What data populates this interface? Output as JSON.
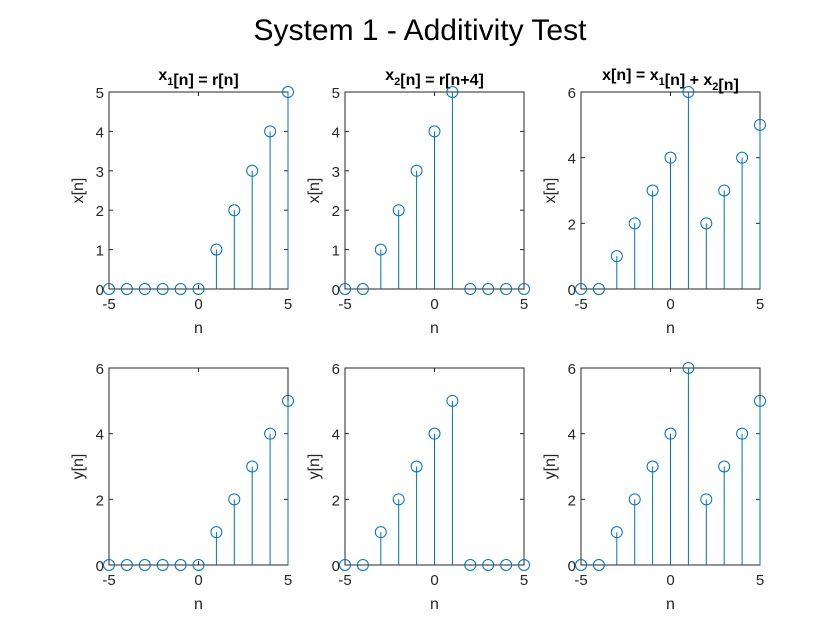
{
  "figure": {
    "suptitle": "System 1 - Additivity Test",
    "colors": {
      "stem": "#0072BD",
      "axis": "#262626",
      "background": "#ffffff"
    }
  },
  "chart_data": [
    {
      "type": "stem",
      "title_parts": [
        {
          "text": "x",
          "sub": false
        },
        {
          "text": "1",
          "sub": true
        },
        {
          "text": "[n] = r[n]",
          "sub": false
        }
      ],
      "xlabel": "n",
      "ylabel": "x[n]",
      "xlim": [
        -5,
        5
      ],
      "ylim": [
        0,
        5
      ],
      "xticks": [
        -5,
        0,
        5
      ],
      "yticks": [
        0,
        1,
        2,
        3,
        4,
        5
      ],
      "x": [
        -5,
        -4,
        -3,
        -2,
        -1,
        0,
        1,
        2,
        3,
        4,
        5
      ],
      "values": [
        0,
        0,
        0,
        0,
        0,
        0,
        1,
        2,
        3,
        4,
        5
      ],
      "grid": false
    },
    {
      "type": "stem",
      "title_parts": [
        {
          "text": "x",
          "sub": false
        },
        {
          "text": "2",
          "sub": true
        },
        {
          "text": "[n] = r[n+4]",
          "sub": false
        }
      ],
      "xlabel": "n",
      "ylabel": "x[n]",
      "xlim": [
        -5,
        5
      ],
      "ylim": [
        0,
        5
      ],
      "xticks": [
        -5,
        0,
        5
      ],
      "yticks": [
        0,
        1,
        2,
        3,
        4,
        5
      ],
      "x": [
        -5,
        -4,
        -3,
        -2,
        -1,
        0,
        1,
        2,
        3,
        4,
        5
      ],
      "values": [
        0,
        0,
        1,
        2,
        3,
        4,
        5,
        0,
        0,
        0,
        0
      ],
      "grid": false
    },
    {
      "type": "stem",
      "title_parts": [
        {
          "text": "x[n] = x",
          "sub": false
        },
        {
          "text": "1",
          "sub": true
        },
        {
          "text": "[n] + x",
          "sub": false
        },
        {
          "text": "2",
          "sub": true
        },
        {
          "text": "[n]",
          "sub": false
        }
      ],
      "xlabel": "n",
      "ylabel": "x[n]",
      "xlim": [
        -5,
        5
      ],
      "ylim": [
        0,
        6
      ],
      "xticks": [
        -5,
        0,
        5
      ],
      "yticks": [
        0,
        2,
        4,
        6
      ],
      "x": [
        -5,
        -4,
        -3,
        -2,
        -1,
        0,
        1,
        2,
        3,
        4,
        5
      ],
      "values": [
        0,
        0,
        1,
        2,
        3,
        4,
        6,
        2,
        3,
        4,
        5
      ],
      "grid": false
    },
    {
      "type": "stem",
      "title_parts": [],
      "xlabel": "n",
      "ylabel": "y[n]",
      "xlim": [
        -5,
        5
      ],
      "ylim": [
        0,
        6
      ],
      "xticks": [
        -5,
        0,
        5
      ],
      "yticks": [
        0,
        2,
        4,
        6
      ],
      "x": [
        -5,
        -4,
        -3,
        -2,
        -1,
        0,
        1,
        2,
        3,
        4,
        5
      ],
      "values": [
        0,
        0,
        0,
        0,
        0,
        0,
        1,
        2,
        3,
        4,
        5
      ],
      "grid": false
    },
    {
      "type": "stem",
      "title_parts": [],
      "xlabel": "n",
      "ylabel": "y[n]",
      "xlim": [
        -5,
        5
      ],
      "ylim": [
        0,
        6
      ],
      "xticks": [
        -5,
        0,
        5
      ],
      "yticks": [
        0,
        2,
        4,
        6
      ],
      "x": [
        -5,
        -4,
        -3,
        -2,
        -1,
        0,
        1,
        2,
        3,
        4,
        5
      ],
      "values": [
        0,
        0,
        1,
        2,
        3,
        4,
        5,
        0,
        0,
        0,
        0
      ],
      "grid": false
    },
    {
      "type": "stem",
      "title_parts": [],
      "xlabel": "n",
      "ylabel": "y[n]",
      "xlim": [
        -5,
        5
      ],
      "ylim": [
        0,
        6
      ],
      "xticks": [
        -5,
        0,
        5
      ],
      "yticks": [
        0,
        2,
        4,
        6
      ],
      "x": [
        -5,
        -4,
        -3,
        -2,
        -1,
        0,
        1,
        2,
        3,
        4,
        5
      ],
      "values": [
        0,
        0,
        1,
        2,
        3,
        4,
        6,
        2,
        3,
        4,
        5
      ],
      "grid": false
    }
  ]
}
